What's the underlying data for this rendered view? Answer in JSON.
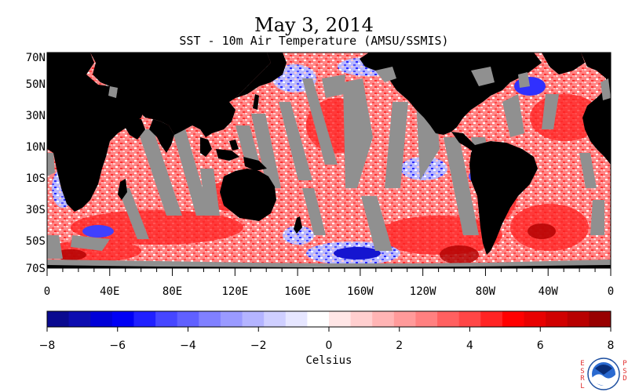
{
  "title": "May 3, 2014",
  "subtitle": "SST - 10m Air Temperature (AMSU/SSMIS)",
  "lat_labels": [
    "70N",
    "50N",
    "30N",
    "10N",
    "10S",
    "30S",
    "50S",
    "70S"
  ],
  "lon_labels": [
    "0",
    "40E",
    "80E",
    "120E",
    "160E",
    "160W",
    "120W",
    "80W",
    "40W",
    "0"
  ],
  "colorbar": {
    "title": "Celsius",
    "tick_labels": [
      "−8",
      "−6",
      "−4",
      "−2",
      "0",
      "2",
      "4",
      "6",
      "8"
    ],
    "min": -8,
    "max": 8,
    "colors": [
      "#0a0a90",
      "#0d0db0",
      "#0000d8",
      "#0000f5",
      "#2020ff",
      "#4646ff",
      "#6060ff",
      "#8080ff",
      "#9a9aff",
      "#b4b4ff",
      "#cfcfff",
      "#e6e6ff",
      "#ffffff",
      "#ffe6e6",
      "#ffcfcf",
      "#ffb4b4",
      "#ff9a9a",
      "#ff8080",
      "#ff6060",
      "#ff4646",
      "#ff2424",
      "#ff0000",
      "#e80000",
      "#d00000",
      "#b80000",
      "#980000"
    ]
  },
  "colors": {
    "land": "#000000",
    "no_data": "#909090",
    "ocean_base": "#ff9090"
  },
  "logos": {
    "left": "ESRL",
    "right": "PSD",
    "seal": "NOAA"
  }
}
